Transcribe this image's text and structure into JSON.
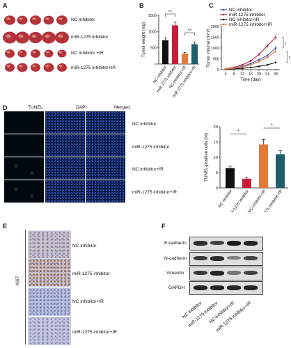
{
  "panels": {
    "A": {
      "letter": "A",
      "rows": [
        "NC inhibitor",
        "miR-1275 inhibitor",
        "NC inhibitor +IR",
        "miR-1275 inhibitor+IR"
      ]
    },
    "B": {
      "letter": "B",
      "ylabel": "Tumor weight (mg)",
      "categories": [
        "NC-inhibitor",
        "miR-1275 inhibitor",
        "NC-inhibitor+IR",
        "miR-1275 inhibitor+IR"
      ],
      "yticks": [
        "0",
        "500",
        "1000",
        "1500"
      ],
      "sig": [
        "**",
        "**"
      ]
    },
    "C": {
      "letter": "C",
      "ylabel": "Tumor volume (mm³)",
      "xlabel": "Time (day)",
      "xticks": [
        "4",
        "8",
        "12",
        "16",
        "20",
        "24",
        "28"
      ],
      "yticks": [
        "0",
        "500",
        "1000",
        "1500",
        "2000"
      ],
      "legend": [
        "NC inhibitor",
        "miR-1275 inhibitor",
        "NC inhibitor+IR",
        "miR-1275 inhibitor+IR"
      ],
      "sig": [
        "**",
        "**"
      ]
    },
    "D": {
      "letter": "D",
      "columns": [
        "TUNEL",
        "DAPI",
        "Merged"
      ],
      "rows": [
        "NC inhibitor",
        "miR-1275 inhibitor",
        "NC inhibitor+IR",
        "miR-1275 inhibitor+IR"
      ],
      "chart": {
        "ylabel": "TUNEL-positive cells (%)",
        "categories": [
          "NC inhibitor",
          "miR-1275 inhibitor",
          "NC-inhibitor+IR",
          "miR-1275 inhibitor+IR"
        ],
        "yticks": [
          "0",
          "5",
          "10",
          "15",
          "20"
        ],
        "sig": [
          "*",
          "*"
        ]
      }
    },
    "E": {
      "letter": "E",
      "side_label": "Ki67",
      "rows": [
        "NC inhibitor",
        "miR-1275 inhibitor",
        "NC inhibitor+IR",
        "miR-1275 inhibitor+IR"
      ]
    },
    "F": {
      "letter": "F",
      "rows": [
        "E-cadherin",
        "N-cadherin",
        "Vimentin",
        "GAPDH"
      ],
      "lanes": [
        "NC inhibitor",
        "miR-1275 inhibitor",
        "NC-inhibitor+IR",
        "miR-1275 inhibitor+IR"
      ]
    }
  },
  "colors": {
    "nc": "#111111",
    "mir": "#c41e3a",
    "nc_ir": "#e07b39",
    "mir_ir": "#1f5f6b",
    "legend_nc": "#3a4fb0",
    "legend_mir": "#b0264a",
    "legend_nc_ir": "#111111",
    "legend_mir_ir": "#e07b39"
  },
  "chart_data": [
    {
      "type": "bar",
      "panel": "B",
      "ylabel": "Tumor weight (mg)",
      "categories": [
        "NC-inhibitor",
        "miR-1275 inhibitor",
        "NC-inhibitor+IR",
        "miR-1275 inhibitor+IR"
      ],
      "values": [
        730,
        1190,
        320,
        610
      ],
      "errors": [
        80,
        100,
        40,
        70
      ],
      "ylim": [
        0,
        1500
      ]
    },
    {
      "type": "line",
      "panel": "C",
      "ylabel": "Tumor volume (mm³)",
      "xlabel": "Time (day)",
      "x": [
        4,
        8,
        12,
        16,
        20,
        24,
        28
      ],
      "ylim": [
        0,
        2000
      ],
      "series": [
        {
          "name": "NC inhibitor",
          "values": [
            30,
            80,
            150,
            280,
            450,
            650,
            1000
          ],
          "errors": [
            10,
            20,
            30,
            40,
            60,
            80,
            100
          ]
        },
        {
          "name": "miR-1275 inhibitor",
          "values": [
            40,
            100,
            220,
            400,
            700,
            1100,
            1500
          ],
          "errors": [
            10,
            20,
            40,
            50,
            80,
            120,
            150
          ]
        },
        {
          "name": "NC inhibitor+IR",
          "values": [
            20,
            40,
            60,
            100,
            150,
            220,
            330
          ],
          "errors": [
            5,
            10,
            10,
            15,
            20,
            30,
            40
          ]
        },
        {
          "name": "miR-1275 inhibitor+IR",
          "values": [
            30,
            60,
            120,
            220,
            380,
            560,
            850
          ],
          "errors": [
            10,
            15,
            25,
            35,
            50,
            70,
            90
          ]
        }
      ]
    },
    {
      "type": "bar",
      "panel": "D",
      "ylabel": "TUNEL-positive cells (%)",
      "categories": [
        "NC inhibitor",
        "miR-1275 inhibitor",
        "NC-inhibitor+IR",
        "miR-1275 inhibitor+IR"
      ],
      "values": [
        6.5,
        3.0,
        14.2,
        11.0
      ],
      "errors": [
        0.6,
        0.3,
        1.6,
        1.2
      ],
      "ylim": [
        0,
        20
      ]
    }
  ]
}
